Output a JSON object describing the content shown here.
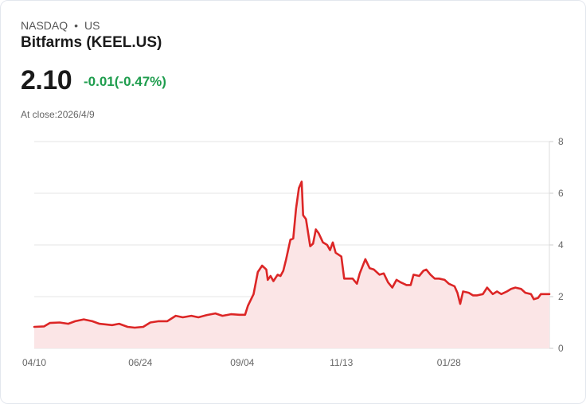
{
  "header": {
    "exchange": "NASDAQ",
    "separator": "•",
    "region": "US",
    "title": "Bitfarms (KEEL.US)",
    "price": "2.10",
    "change": "-0.01(-0.47%)",
    "close_label": "At close:2026/4/9"
  },
  "colors": {
    "line": "#dc2626",
    "fill": "#fbe5e6",
    "change": "#1f9d4e",
    "grid": "#e5e5e5"
  },
  "chart_data": {
    "type": "area",
    "title": "Bitfarms (KEEL.US)",
    "xlabel": "",
    "ylabel": "",
    "x_unit": "days since 04/10",
    "xlim": [
      0,
      364
    ],
    "ylim": [
      0,
      8
    ],
    "grid": true,
    "y_ticks": [
      0,
      2,
      4,
      6,
      8
    ],
    "x_ticks": [
      {
        "day": 0,
        "label": "04/10"
      },
      {
        "day": 75,
        "label": "06/24"
      },
      {
        "day": 147,
        "label": "09/04"
      },
      {
        "day": 217,
        "label": "11/13"
      },
      {
        "day": 293,
        "label": "01/28"
      }
    ],
    "points": [
      [
        0,
        0.83
      ],
      [
        7,
        0.85
      ],
      [
        11,
        0.98
      ],
      [
        18,
        1.0
      ],
      [
        24,
        0.95
      ],
      [
        29,
        1.05
      ],
      [
        35,
        1.12
      ],
      [
        41,
        1.05
      ],
      [
        46,
        0.95
      ],
      [
        55,
        0.9
      ],
      [
        60,
        0.95
      ],
      [
        66,
        0.83
      ],
      [
        71,
        0.8
      ],
      [
        77,
        0.83
      ],
      [
        82,
        1.0
      ],
      [
        88,
        1.05
      ],
      [
        94,
        1.05
      ],
      [
        100,
        1.26
      ],
      [
        105,
        1.2
      ],
      [
        111,
        1.26
      ],
      [
        116,
        1.2
      ],
      [
        122,
        1.29
      ],
      [
        128,
        1.35
      ],
      [
        133,
        1.26
      ],
      [
        139,
        1.32
      ],
      [
        145,
        1.3
      ],
      [
        149,
        1.3
      ],
      [
        151,
        1.65
      ],
      [
        155,
        2.1
      ],
      [
        158,
        2.95
      ],
      [
        161,
        3.2
      ],
      [
        164,
        3.05
      ],
      [
        165,
        2.65
      ],
      [
        167,
        2.8
      ],
      [
        169,
        2.6
      ],
      [
        172,
        2.85
      ],
      [
        174,
        2.8
      ],
      [
        176,
        3.0
      ],
      [
        178,
        3.45
      ],
      [
        181,
        4.2
      ],
      [
        183,
        4.25
      ],
      [
        185,
        5.4
      ],
      [
        187,
        6.2
      ],
      [
        189,
        6.45
      ],
      [
        190,
        5.15
      ],
      [
        192,
        5.0
      ],
      [
        195,
        3.95
      ],
      [
        197,
        4.05
      ],
      [
        199,
        4.6
      ],
      [
        201,
        4.45
      ],
      [
        204,
        4.1
      ],
      [
        207,
        4.0
      ],
      [
        209,
        3.8
      ],
      [
        211,
        4.1
      ],
      [
        213,
        3.7
      ],
      [
        217,
        3.55
      ],
      [
        219,
        2.7
      ],
      [
        222,
        2.7
      ],
      [
        225,
        2.7
      ],
      [
        228,
        2.5
      ],
      [
        230,
        2.9
      ],
      [
        234,
        3.45
      ],
      [
        237,
        3.1
      ],
      [
        240,
        3.05
      ],
      [
        244,
        2.85
      ],
      [
        247,
        2.9
      ],
      [
        250,
        2.55
      ],
      [
        253,
        2.35
      ],
      [
        256,
        2.65
      ],
      [
        259,
        2.55
      ],
      [
        263,
        2.45
      ],
      [
        266,
        2.45
      ],
      [
        268,
        2.85
      ],
      [
        272,
        2.8
      ],
      [
        275,
        3.0
      ],
      [
        277,
        3.05
      ],
      [
        280,
        2.85
      ],
      [
        283,
        2.7
      ],
      [
        286,
        2.7
      ],
      [
        290,
        2.65
      ],
      [
        293,
        2.5
      ],
      [
        297,
        2.4
      ],
      [
        299,
        2.15
      ],
      [
        301,
        1.72
      ],
      [
        303,
        2.2
      ],
      [
        307,
        2.15
      ],
      [
        310,
        2.05
      ],
      [
        313,
        2.05
      ],
      [
        317,
        2.1
      ],
      [
        320,
        2.35
      ],
      [
        324,
        2.1
      ],
      [
        327,
        2.2
      ],
      [
        330,
        2.1
      ],
      [
        334,
        2.2
      ],
      [
        337,
        2.3
      ],
      [
        340,
        2.35
      ],
      [
        344,
        2.3
      ],
      [
        347,
        2.15
      ],
      [
        351,
        2.1
      ],
      [
        353,
        1.9
      ],
      [
        356,
        1.95
      ],
      [
        358,
        2.1
      ],
      [
        361,
        2.1
      ],
      [
        364,
        2.1
      ]
    ]
  }
}
